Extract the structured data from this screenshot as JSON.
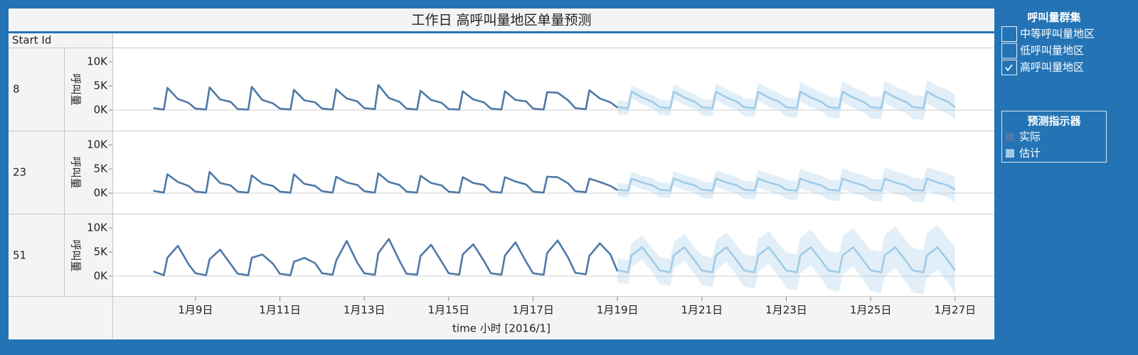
{
  "chart_data": {
    "type": "line",
    "title": "工作日 高呼叫量地区单量预测",
    "row_header": "Start Id",
    "x_label": "time 小时 [2016/1]",
    "y_label": "呼叫量",
    "legend_title": "预测指示器",
    "series": [
      {
        "name": "实际",
        "color": "#4e79a7"
      },
      {
        "name": "估计",
        "color": "#a0cbe8"
      }
    ],
    "band_color": "#a0cbe8",
    "zero_line": true,
    "xlim": [
      7.03,
      27.93
    ],
    "xticks": [
      {
        "value": 9,
        "label": "1月9日"
      },
      {
        "value": 11,
        "label": "1月11日"
      },
      {
        "value": 13,
        "label": "1月13日"
      },
      {
        "value": 15,
        "label": "1月15日"
      },
      {
        "value": 17,
        "label": "1月17日"
      },
      {
        "value": 19,
        "label": "1月19日"
      },
      {
        "value": 21,
        "label": "1月21日"
      },
      {
        "value": 23,
        "label": "1月23日"
      },
      {
        "value": 25,
        "label": "1月25日"
      },
      {
        "value": 27,
        "label": "1月27日"
      }
    ],
    "actual_x": [
      8,
      8.25,
      8.333,
      8.583,
      8.833,
      9,
      9.25,
      9.333,
      9.583,
      9.833,
      10,
      10.25,
      10.333,
      10.583,
      10.833,
      11,
      11.25,
      11.333,
      11.583,
      11.833,
      12,
      12.25,
      12.333,
      12.583,
      12.833,
      13,
      13.25,
      13.333,
      13.583,
      13.833,
      14,
      14.25,
      14.333,
      14.583,
      14.833,
      15,
      15.25,
      15.333,
      15.583,
      15.833,
      16,
      16.25,
      16.333,
      16.583,
      16.833,
      17,
      17.25,
      17.333,
      17.583,
      17.833,
      18,
      18.25,
      18.333,
      18.583,
      18.833,
      19
    ],
    "forecast_x": [
      19,
      19.25,
      19.333,
      19.583,
      19.833,
      20,
      20.25,
      20.333,
      20.583,
      20.833,
      21,
      21.25,
      21.333,
      21.583,
      21.833,
      22,
      22.25,
      22.333,
      22.583,
      22.833,
      23,
      23.25,
      23.333,
      23.583,
      23.833,
      24,
      24.25,
      24.333,
      24.583,
      24.833,
      25,
      25.25,
      25.333,
      25.583,
      25.833,
      26,
      26.25,
      26.333,
      26.583,
      26.833,
      27
    ],
    "panels": [
      {
        "name": "8",
        "ylim": [
          -4265,
          12794
        ],
        "yticks": [
          {
            "value": 0,
            "label": "0K"
          },
          {
            "value": 5000,
            "label": "5K"
          },
          {
            "value": 10000,
            "label": "10K"
          }
        ],
        "actual": [
          400,
          100,
          4600,
          2300,
          1500,
          300,
          100,
          4700,
          2200,
          1700,
          200,
          100,
          4800,
          2100,
          1400,
          300,
          100,
          4200,
          2000,
          1600,
          300,
          100,
          4300,
          2400,
          1800,
          400,
          200,
          5200,
          2500,
          1700,
          300,
          100,
          4000,
          2100,
          1500,
          200,
          100,
          3900,
          2200,
          1600,
          300,
          100,
          3900,
          2100,
          1800,
          300,
          100,
          3700,
          3600,
          2000,
          400,
          200,
          4100,
          2400,
          1600,
          500
        ],
        "forecast": [
          600,
          400,
          3800,
          2600,
          1700,
          600,
          400,
          3800,
          2600,
          1700,
          600,
          400,
          3800,
          2600,
          1700,
          600,
          400,
          3800,
          2600,
          1700,
          600,
          400,
          3800,
          2600,
          1700,
          600,
          400,
          3800,
          2600,
          1700,
          600,
          400,
          3800,
          2600,
          1700,
          600,
          400,
          3800,
          2600,
          1700,
          600
        ],
        "lower": [
          -800,
          -1000,
          2400,
          1200,
          300,
          -950,
          -1150,
          2250,
          1050,
          150,
          -1100,
          -1300,
          2100,
          900,
          0,
          -1250,
          -1450,
          1950,
          750,
          -150,
          -1400,
          -1600,
          1800,
          600,
          -300,
          -1550,
          -1750,
          1650,
          450,
          -450,
          -1700,
          -1900,
          1500,
          300,
          -600,
          -1850,
          -2050,
          1350,
          150,
          -750,
          -2000
        ],
        "upper": [
          2000,
          1800,
          5200,
          4000,
          3100,
          2150,
          1950,
          5350,
          4150,
          3250,
          2300,
          2100,
          5500,
          4300,
          3400,
          2450,
          2250,
          5650,
          4450,
          3550,
          2600,
          2400,
          5800,
          4600,
          3700,
          2750,
          2550,
          5950,
          4750,
          3850,
          2900,
          2700,
          6100,
          4900,
          4000,
          3050,
          2850,
          6250,
          5050,
          4150,
          3200
        ]
      },
      {
        "name": "23",
        "ylim": [
          -4265,
          12794
        ],
        "yticks": [
          {
            "value": 0,
            "label": "0K"
          },
          {
            "value": 5000,
            "label": "5K"
          },
          {
            "value": 10000,
            "label": "10K"
          }
        ],
        "actual": [
          500,
          100,
          3900,
          2300,
          1500,
          300,
          100,
          4400,
          2100,
          1600,
          300,
          100,
          3700,
          2000,
          1500,
          300,
          100,
          3900,
          1900,
          1500,
          400,
          100,
          3400,
          2200,
          1700,
          400,
          100,
          4100,
          2300,
          1700,
          300,
          100,
          3600,
          2100,
          1600,
          300,
          100,
          3300,
          2100,
          1700,
          300,
          100,
          3300,
          2400,
          1800,
          300,
          100,
          3400,
          3300,
          2000,
          400,
          200,
          3000,
          2300,
          1500,
          600
        ],
        "forecast": [
          700,
          500,
          3000,
          2200,
          1600,
          700,
          500,
          3000,
          2200,
          1600,
          700,
          500,
          3000,
          2200,
          1600,
          700,
          500,
          3000,
          2200,
          1600,
          700,
          500,
          3000,
          2200,
          1600,
          700,
          500,
          3000,
          2200,
          1600,
          700,
          500,
          3000,
          2200,
          1600,
          700,
          500,
          3000,
          2200,
          1600,
          700
        ],
        "lower": [
          -700,
          -900,
          1600,
          800,
          200,
          -850,
          -1050,
          1450,
          650,
          50,
          -1000,
          -1200,
          1300,
          500,
          -100,
          -1150,
          -1350,
          1150,
          350,
          -250,
          -1300,
          -1500,
          1000,
          200,
          -400,
          -1450,
          -1650,
          850,
          50,
          -550,
          -1600,
          -1800,
          700,
          -100,
          -700,
          -1750,
          -1950,
          550,
          -250,
          -850,
          -1900
        ],
        "upper": [
          2100,
          1900,
          4400,
          3600,
          3000,
          2250,
          2050,
          4550,
          3750,
          3150,
          2400,
          2200,
          4700,
          3900,
          3300,
          2550,
          2350,
          4850,
          4050,
          3450,
          2700,
          2500,
          5000,
          4200,
          3600,
          2850,
          2650,
          5150,
          4350,
          3750,
          3000,
          2800,
          5300,
          4500,
          3900,
          3150,
          2950,
          5450,
          4650,
          4050,
          3300
        ]
      },
      {
        "name": "51",
        "ylim": [
          -4265,
          12794
        ],
        "yticks": [
          {
            "value": 0,
            "label": "0K"
          },
          {
            "value": 5000,
            "label": "5K"
          },
          {
            "value": 10000,
            "label": "10K"
          }
        ],
        "actual": [
          1000,
          200,
          3800,
          6300,
          2500,
          600,
          200,
          3500,
          5500,
          2500,
          500,
          200,
          3800,
          4500,
          2600,
          500,
          200,
          3000,
          3800,
          2700,
          600,
          300,
          3200,
          7300,
          2800,
          600,
          300,
          4800,
          7700,
          3200,
          500,
          300,
          4200,
          6500,
          3000,
          600,
          300,
          4500,
          6600,
          3200,
          600,
          300,
          4300,
          7000,
          3000,
          600,
          300,
          4800,
          7400,
          3800,
          700,
          400,
          4200,
          6800,
          4500,
          1000
        ],
        "forecast": [
          1200,
          800,
          4300,
          6000,
          3200,
          1200,
          800,
          4300,
          6000,
          3200,
          1200,
          800,
          4300,
          6000,
          3200,
          1200,
          800,
          4300,
          6000,
          3200,
          1200,
          800,
          4300,
          6000,
          3200,
          1200,
          800,
          4300,
          6000,
          3200,
          1200,
          800,
          4300,
          6000,
          3200,
          1200,
          800,
          4300,
          6000,
          3200,
          1200
        ],
        "lower": [
          -1300,
          -1700,
          1800,
          3500,
          700,
          -1600,
          -2000,
          1500,
          3200,
          400,
          -1900,
          -2300,
          1200,
          2900,
          100,
          -2200,
          -2600,
          900,
          2600,
          -200,
          -2500,
          -2900,
          600,
          2300,
          -500,
          -2800,
          -3200,
          300,
          2000,
          -800,
          -3100,
          -3500,
          0,
          1700,
          -1100,
          -3400,
          -3800,
          -300,
          1400,
          -1400,
          -3700
        ],
        "upper": [
          3700,
          3300,
          6800,
          8500,
          5700,
          4000,
          3600,
          7100,
          8800,
          6000,
          4300,
          3900,
          7400,
          9100,
          6300,
          4600,
          4200,
          7700,
          9400,
          6600,
          4900,
          4500,
          8000,
          9700,
          6900,
          5200,
          4800,
          8300,
          10000,
          7200,
          5500,
          5100,
          8600,
          10300,
          7500,
          5800,
          5400,
          8900,
          10600,
          7800,
          6100
        ]
      }
    ]
  },
  "filter": {
    "title": "呼叫量群集",
    "items": [
      {
        "label": "中等呼叫量地区",
        "checked": false
      },
      {
        "label": "低呼叫量地区",
        "checked": false
      },
      {
        "label": "高呼叫量地区",
        "checked": true
      }
    ]
  }
}
